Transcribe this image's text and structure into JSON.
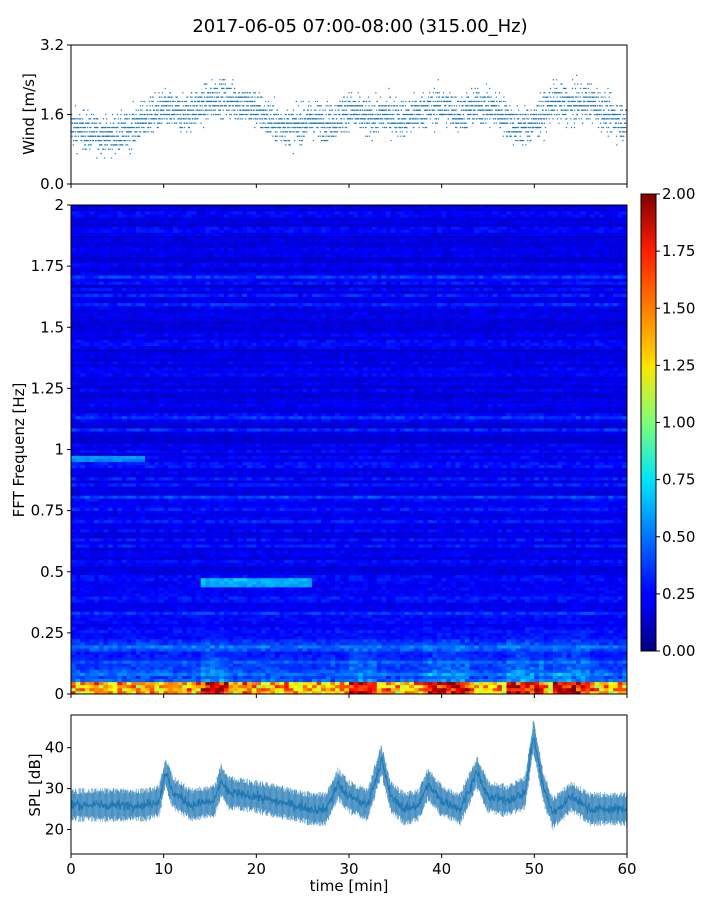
{
  "title": "2017-06-05 07:00-08:00 (315.00_Hz)",
  "chart_data": [
    {
      "panel": "wind",
      "type": "scatter",
      "ylabel": "Wind [m/s]",
      "xlim": [
        0,
        60
      ],
      "ylim": [
        0,
        3.2
      ],
      "yticks": [
        0.0,
        1.6,
        3.2
      ],
      "ytick_labels": [
        "0.0",
        "1.6",
        "3.2"
      ],
      "color": "#1f77b4",
      "level_profile": {
        "x": [
          0,
          2,
          4,
          6,
          8,
          10,
          12,
          14,
          16,
          18,
          20,
          22,
          24,
          26,
          28,
          30,
          32,
          34,
          36,
          38,
          40,
          42,
          44,
          46,
          48,
          50,
          52,
          54,
          56,
          58,
          60
        ],
        "y": [
          1.3,
          1.2,
          1.1,
          1.2,
          1.5,
          1.7,
          1.6,
          1.8,
          2.0,
          1.9,
          1.7,
          1.4,
          1.3,
          1.5,
          1.4,
          1.7,
          1.5,
          1.6,
          1.5,
          1.7,
          1.8,
          1.6,
          1.8,
          1.7,
          1.3,
          1.4,
          1.9,
          1.8,
          1.9,
          1.6,
          1.4
        ]
      }
    },
    {
      "panel": "spectrogram",
      "type": "heatmap",
      "ylabel": "FFT Frequenz [Hz]",
      "xlim": [
        0,
        60
      ],
      "ylim": [
        0,
        2
      ],
      "yticks": [
        0,
        0.25,
        0.5,
        0.75,
        1,
        1.25,
        1.5,
        1.75,
        2
      ],
      "ytick_labels": [
        "0",
        "0.25",
        "0.5",
        "0.75",
        "1",
        "1.25",
        "1.5",
        "1.75",
        "2"
      ],
      "colormap": "jet",
      "clim": [
        0,
        2
      ],
      "colorbar_ticks": [
        "0.00",
        "0.25",
        "0.50",
        "0.75",
        "1.00",
        "1.25",
        "1.50",
        "1.75",
        "2.00"
      ],
      "background_level": 0.2,
      "features": [
        {
          "desc": "low-frequency band",
          "freq": [
            0.0,
            0.05
          ],
          "level": 1.1
        },
        {
          "desc": "line near 0.46 Hz",
          "freq": [
            0.44,
            0.47
          ],
          "time": [
            14,
            26
          ],
          "level": 0.55
        },
        {
          "desc": "line near 0.97 Hz",
          "freq": [
            0.96,
            0.98
          ],
          "time": [
            0,
            8
          ],
          "level": 0.5
        }
      ]
    },
    {
      "panel": "spl",
      "type": "line",
      "ylabel": "SPL [dB]",
      "xlabel": "time [min]",
      "xlim": [
        0,
        60
      ],
      "ylim": [
        14,
        48
      ],
      "yticks": [
        20,
        30,
        40
      ],
      "xticks": [
        0,
        10,
        20,
        30,
        40,
        50,
        60
      ],
      "color": "#1f77b4",
      "series": {
        "x": [
          0,
          4,
          8,
          9.5,
          10.2,
          11,
          13,
          15.5,
          16.2,
          17,
          20,
          24,
          26,
          27.5,
          28.8,
          30,
          32,
          33.5,
          34.5,
          36,
          37.5,
          38.5,
          40,
          42,
          43.8,
          45,
          47,
          49,
          49.9,
          51,
          52,
          54,
          56,
          58,
          60
        ],
        "y": [
          26,
          26,
          26,
          27,
          34,
          29,
          26,
          27,
          32,
          29,
          28,
          26,
          25,
          25,
          31,
          28,
          26,
          37,
          28,
          25,
          26,
          31,
          27,
          25,
          34,
          28,
          27,
          29,
          43,
          30,
          24,
          28,
          25,
          25,
          25
        ]
      }
    }
  ]
}
